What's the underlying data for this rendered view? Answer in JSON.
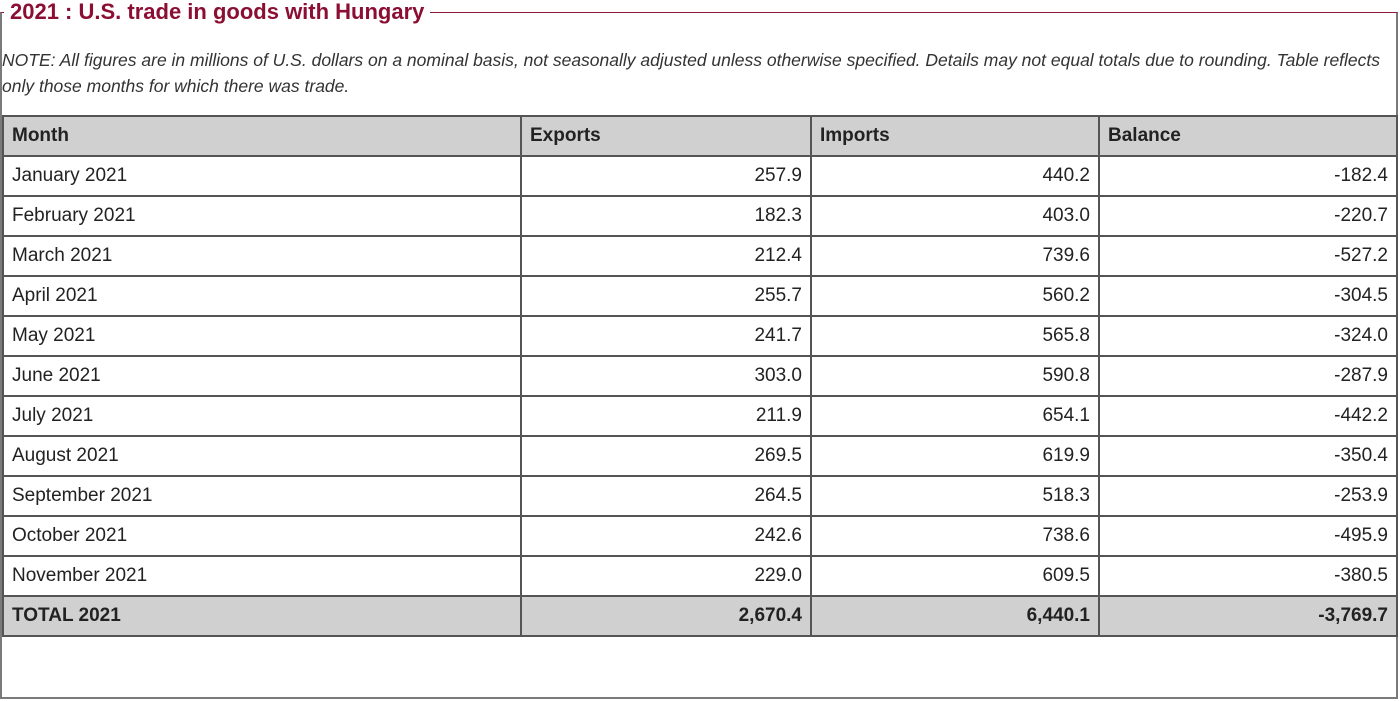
{
  "title": "2021 : U.S. trade in goods with Hungary",
  "note": "NOTE: All figures are in millions of U.S. dollars on a nominal basis, not seasonally adjusted unless otherwise specified. Details may not equal totals due to rounding. Table reflects only those months for which there was trade.",
  "table": {
    "headers": [
      "Month",
      "Exports",
      "Imports",
      "Balance"
    ],
    "rows": [
      {
        "month": "January 2021",
        "exports": "257.9",
        "imports": "440.2",
        "balance": "-182.4"
      },
      {
        "month": "February 2021",
        "exports": "182.3",
        "imports": "403.0",
        "balance": "-220.7"
      },
      {
        "month": "March 2021",
        "exports": "212.4",
        "imports": "739.6",
        "balance": "-527.2"
      },
      {
        "month": "April 2021",
        "exports": "255.7",
        "imports": "560.2",
        "balance": "-304.5"
      },
      {
        "month": "May 2021",
        "exports": "241.7",
        "imports": "565.8",
        "balance": "-324.0"
      },
      {
        "month": "June 2021",
        "exports": "303.0",
        "imports": "590.8",
        "balance": "-287.9"
      },
      {
        "month": "July 2021",
        "exports": "211.9",
        "imports": "654.1",
        "balance": "-442.2"
      },
      {
        "month": "August 2021",
        "exports": "269.5",
        "imports": "619.9",
        "balance": "-350.4"
      },
      {
        "month": "September 2021",
        "exports": "264.5",
        "imports": "518.3",
        "balance": "-253.9"
      },
      {
        "month": "October 2021",
        "exports": "242.6",
        "imports": "738.6",
        "balance": "-495.9"
      },
      {
        "month": "November 2021",
        "exports": "229.0",
        "imports": "609.5",
        "balance": "-380.5"
      }
    ],
    "total": {
      "month": "TOTAL 2021",
      "exports": "2,670.4",
      "imports": "6,440.1",
      "balance": "-3,769.7"
    }
  },
  "colors": {
    "title": "#8b0f33",
    "header_background": "#d0d0d0",
    "border": "#555555"
  }
}
